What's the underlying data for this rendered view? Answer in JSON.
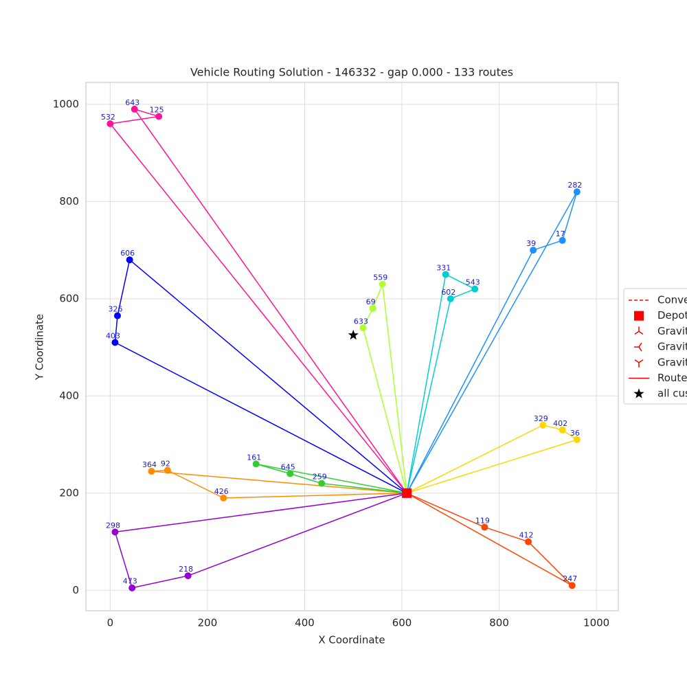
{
  "chart_data": {
    "type": "route",
    "title": "Vehicle Routing Solution - 146332 - gap 0.000 - 133 routes",
    "xlabel": "X Coordinate",
    "ylabel": "Y Coordinate",
    "xlim": [
      -50,
      1045
    ],
    "ylim": [
      -42,
      1045
    ],
    "xticks": [
      0,
      200,
      400,
      600,
      800,
      1000
    ],
    "yticks": [
      0,
      200,
      400,
      600,
      800,
      1000
    ],
    "grid": true,
    "depot": {
      "x": 610,
      "y": 200,
      "color": "#ff0000"
    },
    "centroid": {
      "x": 500,
      "y": 525,
      "color": "#000000"
    },
    "routes": [
      {
        "color": "#ff8c00",
        "x": [
          233,
          118,
          85
        ],
        "y": [
          190,
          247,
          245
        ],
        "labels": [
          426,
          92,
          364
        ]
      },
      {
        "color": "#32cd32",
        "x": [
          435,
          370,
          300
        ],
        "y": [
          220,
          240,
          260
        ],
        "labels": [
          259,
          645,
          161
        ]
      },
      {
        "color": "#0000ff",
        "x": [
          40,
          15,
          10
        ],
        "y": [
          680,
          565,
          510
        ],
        "labels": [
          606,
          326,
          403
        ]
      },
      {
        "color": "#ff1493",
        "x": [
          50,
          100,
          0
        ],
        "y": [
          990,
          975,
          960
        ],
        "labels": [
          643,
          125,
          532
        ]
      },
      {
        "color": "#00ced1",
        "x": [
          700,
          750,
          690
        ],
        "y": [
          600,
          620,
          650
        ],
        "labels": [
          602,
          543,
          331
        ]
      },
      {
        "color": "#9400d3",
        "x": [
          160,
          45,
          10
        ],
        "y": [
          30,
          5,
          120
        ],
        "labels": [
          218,
          473,
          298
        ]
      },
      {
        "color": "#adff2f",
        "x": [
          560,
          540,
          520
        ],
        "y": [
          630,
          580,
          540
        ],
        "labels": [
          559,
          69,
          633
        ]
      },
      {
        "color": "#ff4500",
        "x": [
          770,
          860,
          950
        ],
        "y": [
          130,
          100,
          10
        ],
        "labels": [
          119,
          412,
          247
        ]
      },
      {
        "color": "#1e90ff",
        "x": [
          870,
          930,
          960
        ],
        "y": [
          700,
          720,
          820
        ],
        "labels": [
          39,
          17,
          282
        ]
      },
      {
        "color": "#ffd700",
        "x": [
          890,
          930,
          960
        ],
        "y": [
          340,
          330,
          310
        ],
        "labels": [
          329,
          402,
          36
        ]
      }
    ],
    "legend": [
      {
        "name": "Conve",
        "marker": "dashed",
        "color": "#ff0000"
      },
      {
        "name": "Depot",
        "marker": "square",
        "color": "#ff0000"
      },
      {
        "name": "Gravit",
        "marker": "tri_down",
        "color": "#ff0000"
      },
      {
        "name": "Gravit",
        "marker": "tri_left",
        "color": "#ff0000"
      },
      {
        "name": "Gravit",
        "marker": "tri_up",
        "color": "#ff0000"
      },
      {
        "name": "Route",
        "marker": "line",
        "color": "#ff0000"
      },
      {
        "name": "all cus",
        "marker": "star",
        "color": "#000000"
      }
    ]
  }
}
